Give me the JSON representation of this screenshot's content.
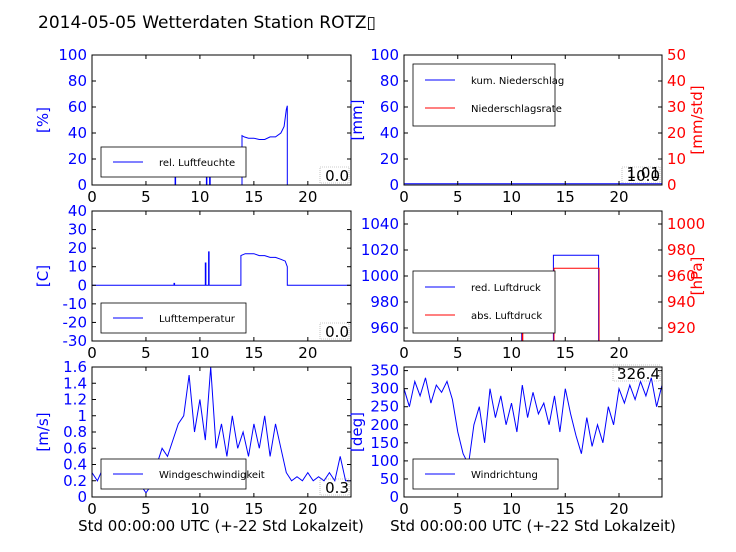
{
  "title": "2014-05-05 Wetterdaten Station ROTZ▯",
  "xlabel": "Std 00:00:00 UTC (+-22 Std Lokalzeit)",
  "colors": {
    "primary": "#0000ff",
    "secondary": "#ff0000",
    "axis": "#000000"
  },
  "chart_data": [
    {
      "id": "humidity",
      "type": "line",
      "xlim": [
        0,
        24
      ],
      "ylim": [
        0,
        100
      ],
      "xticks": [
        0,
        5,
        10,
        15,
        20
      ],
      "yticks": [
        0,
        20,
        40,
        60,
        80,
        100
      ],
      "ylabel": "[%]",
      "legend": {
        "placement": "lower-left",
        "entries": [
          {
            "label": "rel. Luftfeuchte",
            "color": "#0000ff"
          }
        ]
      },
      "annotation": "0.0",
      "series": [
        {
          "name": "rel. Luftfeuchte",
          "color": "#0000ff",
          "x": [
            0,
            7.7,
            7.7,
            7.75,
            7.75,
            10.6,
            10.6,
            10.65,
            10.65,
            10.9,
            10.9,
            10.95,
            10.95,
            13.9,
            13.9,
            14.1,
            14.5,
            15,
            15.5,
            16,
            16.5,
            17,
            17.5,
            17.8,
            18,
            18.1,
            18.1,
            24
          ],
          "y": [
            0,
            0,
            8,
            8,
            0,
            0,
            10,
            10,
            0,
            0,
            25,
            25,
            0,
            0,
            38,
            37,
            36,
            36,
            35,
            35,
            37,
            37,
            40,
            45,
            58,
            61,
            0,
            0
          ]
        }
      ]
    },
    {
      "id": "precipitation",
      "type": "line",
      "xlim": [
        0,
        24
      ],
      "ylim": [
        0,
        100
      ],
      "ylim2": [
        0,
        50
      ],
      "xticks": [
        0,
        5,
        10,
        15,
        20
      ],
      "yticks": [
        0,
        20,
        40,
        60,
        80,
        100
      ],
      "yticks2": [
        0,
        10,
        20,
        30,
        40,
        50
      ],
      "ylabel": "[mm]",
      "ylabel2": "[mm/std]",
      "legend": {
        "placement": "upper-left",
        "entries": [
          {
            "label": "kum. Niederschlag",
            "color": "#0000ff"
          },
          {
            "label": "Niederschlagsrate",
            "color": "#ff0000"
          }
        ]
      },
      "annotation": "10.0",
      "annotation_overlap": "1.01",
      "series": [
        {
          "name": "kum. Niederschlag",
          "axis": "left",
          "color": "#0000ff",
          "x": [
            0,
            24
          ],
          "y": [
            1.0,
            1.0
          ]
        },
        {
          "name": "Niederschlagsrate",
          "axis": "right",
          "color": "#ff0000",
          "x": [
            0,
            24
          ],
          "y": [
            0,
            0
          ]
        }
      ]
    },
    {
      "id": "temperature",
      "type": "line",
      "xlim": [
        0,
        24
      ],
      "ylim": [
        -30,
        40
      ],
      "xticks": [
        0,
        5,
        10,
        15,
        20
      ],
      "yticks": [
        -30,
        -20,
        -10,
        0,
        10,
        20,
        30,
        40
      ],
      "ylabel": "[C]",
      "legend": {
        "placement": "lower-left",
        "entries": [
          {
            "label": "Lufttemperatur",
            "color": "#0000ff"
          }
        ]
      },
      "annotation": "0.0",
      "series": [
        {
          "name": "Lufttemperatur",
          "color": "#0000ff",
          "x": [
            0,
            7.6,
            7.6,
            7.65,
            7.65,
            10.5,
            10.5,
            10.55,
            10.55,
            10.8,
            10.8,
            10.85,
            10.85,
            13.8,
            13.8,
            14.2,
            14.6,
            15,
            15.5,
            16,
            16.5,
            17,
            17.5,
            17.9,
            18.1,
            18.1,
            24
          ],
          "y": [
            0,
            0,
            1,
            1,
            0,
            0,
            12,
            12,
            0,
            0,
            18,
            18,
            0,
            0,
            16,
            17,
            17,
            17,
            16,
            16,
            15,
            15,
            14,
            13,
            10,
            0,
            0
          ]
        }
      ]
    },
    {
      "id": "pressure",
      "type": "line",
      "xlim": [
        0,
        24
      ],
      "ylim": [
        950,
        1050
      ],
      "ylim2": [
        910,
        1010
      ],
      "xticks": [
        0,
        5,
        10,
        15,
        20
      ],
      "yticks": [
        960,
        980,
        1000,
        1020,
        1040
      ],
      "yticks2": [
        920,
        940,
        960,
        980,
        1000
      ],
      "ylabel2": "[hPa]",
      "legend": {
        "placement": "lower-left",
        "entries": [
          {
            "label": "red. Luftdruck",
            "color": "#0000ff"
          },
          {
            "label": "abs. Luftdruck",
            "color": "#ff0000"
          }
        ]
      },
      "series": [
        {
          "name": "red. Luftdruck",
          "axis": "left",
          "color": "#0000ff",
          "x": [
            10.95,
            10.95,
            11.0,
            11.0,
            13.9,
            13.9,
            15,
            16.5,
            18.1,
            18.1
          ],
          "y": [
            950,
            1000,
            1000,
            950,
            950,
            1016,
            1016,
            1016,
            1016,
            950
          ]
        },
        {
          "name": "abs. Luftdruck",
          "axis": "right",
          "color": "#ff0000",
          "x": [
            11.0,
            11.0,
            11.05,
            11.05,
            13.95,
            13.95,
            15,
            16.5,
            18.15,
            18.15
          ],
          "y": [
            910,
            955,
            955,
            910,
            910,
            966,
            966,
            966,
            966,
            910
          ]
        }
      ]
    },
    {
      "id": "wind-speed",
      "type": "line",
      "xlim": [
        0,
        24
      ],
      "ylim": [
        0,
        1.6
      ],
      "xticks": [
        0,
        5,
        10,
        15,
        20
      ],
      "yticks": [
        0,
        0.2,
        0.4,
        0.6,
        0.8,
        1.0,
        1.2,
        1.4,
        1.6
      ],
      "ylabel": "[m/s]",
      "legend": {
        "placement": "lower-left",
        "entries": [
          {
            "label": "Windgeschwindigkeit",
            "color": "#0000ff"
          }
        ]
      },
      "annotation": "0.3",
      "series": [
        {
          "name": "Windgeschwindigkeit",
          "color": "#0000ff",
          "x": [
            0,
            0.5,
            1,
            1.5,
            2,
            2.5,
            3,
            3.5,
            4,
            4.5,
            5,
            5.5,
            6,
            6.5,
            7,
            7.5,
            8,
            8.5,
            9,
            9.5,
            10,
            10.5,
            11,
            11.5,
            12,
            12.5,
            13,
            13.5,
            14,
            14.5,
            15,
            15.5,
            16,
            16.5,
            17,
            17.5,
            18,
            18.5,
            19,
            19.5,
            20,
            20.5,
            21,
            21.5,
            22,
            22.5,
            23,
            23.5,
            24
          ],
          "y": [
            0.3,
            0.2,
            0.35,
            0.25,
            0.3,
            0.2,
            0.35,
            0.3,
            0.2,
            0.15,
            0.05,
            0.15,
            0.4,
            0.6,
            0.5,
            0.7,
            0.9,
            1.0,
            1.5,
            0.8,
            1.2,
            0.7,
            1.6,
            0.6,
            0.9,
            0.5,
            1.0,
            0.6,
            0.8,
            0.5,
            0.9,
            0.6,
            1.0,
            0.5,
            0.9,
            0.6,
            0.3,
            0.2,
            0.25,
            0.2,
            0.3,
            0.2,
            0.25,
            0.2,
            0.3,
            0.2,
            0.5,
            0.2,
            0.2
          ]
        }
      ]
    },
    {
      "id": "wind-direction",
      "type": "line",
      "xlim": [
        0,
        24
      ],
      "ylim": [
        0,
        360
      ],
      "xticks": [
        0,
        5,
        10,
        15,
        20
      ],
      "yticks": [
        0,
        50,
        100,
        150,
        200,
        250,
        300,
        350
      ],
      "ylabel": "[deg]",
      "legend": {
        "placement": "lower-left",
        "entries": [
          {
            "label": "Windrichtung",
            "color": "#0000ff"
          }
        ]
      },
      "annotation": "326.4",
      "series": [
        {
          "name": "Windrichtung",
          "color": "#0000ff",
          "x": [
            0,
            0.5,
            1,
            1.5,
            2,
            2.5,
            3,
            3.5,
            4,
            4.5,
            5,
            5.5,
            6,
            6.5,
            7,
            7.5,
            8,
            8.5,
            9,
            9.5,
            10,
            10.5,
            11,
            11.5,
            12,
            12.5,
            13,
            13.5,
            14,
            14.5,
            15,
            15.5,
            16,
            16.5,
            17,
            17.5,
            18,
            18.5,
            19,
            19.5,
            20,
            20.5,
            21,
            21.5,
            22,
            22.5,
            23,
            23.5,
            24
          ],
          "y": [
            300,
            250,
            320,
            280,
            330,
            260,
            310,
            290,
            320,
            270,
            180,
            120,
            90,
            200,
            250,
            150,
            300,
            220,
            280,
            200,
            260,
            180,
            310,
            220,
            290,
            230,
            260,
            200,
            280,
            180,
            300,
            230,
            170,
            120,
            220,
            140,
            200,
            150,
            250,
            200,
            300,
            260,
            310,
            270,
            320,
            280,
            330,
            250,
            310
          ]
        }
      ]
    }
  ]
}
